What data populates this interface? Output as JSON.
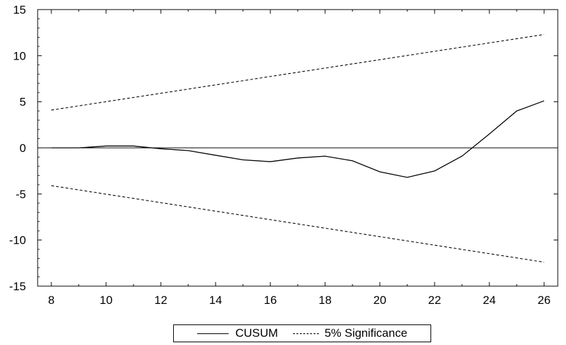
{
  "chart_data": {
    "type": "line",
    "title": "",
    "xlabel": "",
    "ylabel": "",
    "xlim": [
      7.5,
      26.5
    ],
    "ylim": [
      -15,
      15
    ],
    "xticks": [
      8,
      10,
      12,
      14,
      16,
      18,
      20,
      22,
      24,
      26
    ],
    "yticks": [
      -15,
      -10,
      -5,
      0,
      5,
      10,
      15
    ],
    "zero_line": true,
    "grid": false,
    "legend_position": "bottom",
    "series": [
      {
        "name": "CUSUM",
        "style": "solid",
        "color": "#000000",
        "x": [
          8,
          9,
          10,
          11,
          12,
          13,
          14,
          15,
          16,
          17,
          18,
          19,
          20,
          21,
          22,
          23,
          24,
          25,
          26
        ],
        "y": [
          0.0,
          0.0,
          0.2,
          0.2,
          -0.1,
          -0.3,
          -0.8,
          -1.3,
          -1.5,
          -1.1,
          -0.9,
          -1.4,
          -2.6,
          -3.2,
          -2.5,
          -0.9,
          1.5,
          4.0,
          5.1
        ]
      },
      {
        "name": "5% Significance",
        "style": "dashed",
        "color": "#000000",
        "x": [
          8,
          26
        ],
        "y": [
          4.1,
          12.3
        ]
      },
      {
        "name": "5% Significance",
        "style": "dashed",
        "color": "#000000",
        "x": [
          8,
          26
        ],
        "y": [
          -4.1,
          -12.4
        ]
      }
    ],
    "legend": [
      "CUSUM",
      "5% Significance"
    ]
  }
}
